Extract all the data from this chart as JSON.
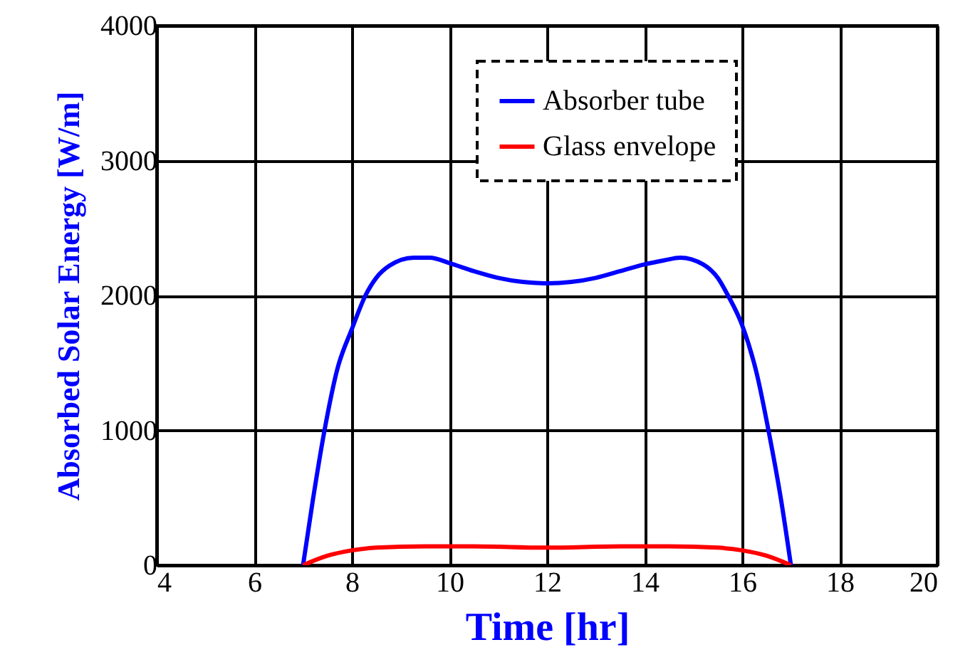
{
  "chart_data": {
    "type": "line",
    "xlabel": "Time [hr]",
    "ylabel": "Absorbed Solar Energy [W/m]",
    "xlim": [
      4,
      20
    ],
    "xticks": [
      4,
      6,
      8,
      10,
      12,
      14,
      16,
      18,
      20
    ],
    "ylim": [
      0,
      4000
    ],
    "yticks": [
      0,
      1000,
      2000,
      3000,
      4000
    ],
    "grid": true,
    "legend": "top right",
    "marker": "none",
    "line_style": "solid",
    "series": [
      {
        "name": "Absorber tube",
        "color": "#0000ff",
        "x": [
          7,
          7.2,
          7.44,
          7.7,
          8,
          8.28,
          8.5,
          8.77,
          9.27,
          9.6,
          10,
          10.5,
          11,
          11.5,
          12,
          12.5,
          13,
          13.5,
          14,
          14.4,
          14.73,
          15.2,
          15.5,
          15.71,
          16,
          16.3,
          16.54,
          16.8,
          17
        ],
        "values": [
          0,
          480,
          1000,
          1450,
          1750,
          2000,
          2130,
          2220,
          2280,
          2280,
          2240,
          2180,
          2130,
          2100,
          2090,
          2100,
          2130,
          2180,
          2230,
          2260,
          2280,
          2230,
          2130,
          2000,
          1780,
          1420,
          1000,
          480,
          0
        ]
      },
      {
        "name": "Glass envelope",
        "color": "#ff0000",
        "x": [
          7,
          7.5,
          8,
          8.5,
          9.5,
          10.5,
          12,
          13.5,
          14.5,
          15.5,
          16,
          16.5,
          17
        ],
        "values": [
          0,
          70,
          110,
          130,
          140,
          140,
          130,
          140,
          140,
          130,
          110,
          70,
          0
        ]
      }
    ]
  }
}
